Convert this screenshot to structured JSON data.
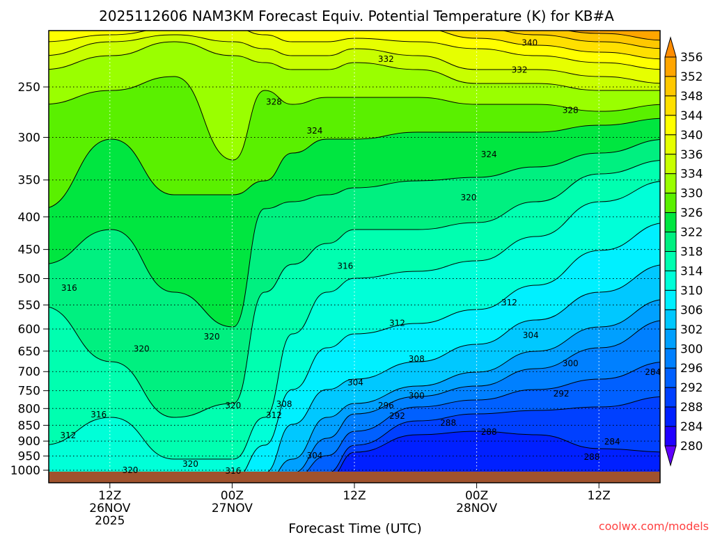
{
  "chart_data": {
    "type": "contour",
    "title": "2025112606 NAM3KM Forecast Equiv. Potential Temperature (K) for KB#A",
    "xlabel": "Forecast Time (UTC)",
    "ylabel": "",
    "x_unit": "forecast hours from 06Z 26NOV2025",
    "xlim": [
      0,
      60
    ],
    "ylim_hPa": [
      1045,
      205
    ],
    "y_scale": "log",
    "y_ticks": [
      250,
      300,
      350,
      400,
      450,
      500,
      550,
      600,
      650,
      700,
      750,
      800,
      850,
      900,
      950,
      1000
    ],
    "x_ticks": [
      {
        "hour": 6,
        "lines": [
          "12Z",
          "26NOV",
          "2025"
        ]
      },
      {
        "hour": 18,
        "lines": [
          "00Z",
          "27NOV"
        ]
      },
      {
        "hour": 30,
        "lines": [
          "12Z"
        ]
      },
      {
        "hour": 42,
        "lines": [
          "00Z",
          "28NOV"
        ]
      },
      {
        "hour": 54,
        "lines": [
          "12Z"
        ]
      }
    ],
    "grid": true,
    "colorbar": {
      "labels": [
        "356",
        "352",
        "348",
        "344",
        "340",
        "336",
        "334",
        "330",
        "326",
        "322",
        "318",
        "314",
        "310",
        "306",
        "302",
        "300",
        "296",
        "292",
        "288",
        "284",
        "280"
      ],
      "colors": [
        "#ffa500",
        "#ffc800",
        "#ffe000",
        "#ffff00",
        "#e6ff00",
        "#c8ff00",
        "#9aff00",
        "#5af000",
        "#00e640",
        "#00f080",
        "#00ffb0",
        "#00ffd8",
        "#00f0ff",
        "#00c8ff",
        "#00a0ff",
        "#0080ff",
        "#0060ff",
        "#0040ff",
        "#0020ff",
        "#2000ff"
      ],
      "over_color": "#ff8c00",
      "under_color": "#6000ff"
    },
    "ground_color": "#a0522d",
    "contour_labels": [
      {
        "value": "340",
        "hour": 47.2,
        "p": 213
      },
      {
        "value": "332",
        "hour": 33.1,
        "p": 226
      },
      {
        "value": "332",
        "hour": 46.2,
        "p": 235
      },
      {
        "value": "328",
        "hour": 22.1,
        "p": 264
      },
      {
        "value": "328",
        "hour": 51.2,
        "p": 272
      },
      {
        "value": "324",
        "hour": 26.1,
        "p": 293
      },
      {
        "value": "324",
        "hour": 43.2,
        "p": 319
      },
      {
        "value": "320",
        "hour": 41.2,
        "p": 373
      },
      {
        "value": "316",
        "hour": 29.1,
        "p": 478
      },
      {
        "value": "316",
        "hour": 2.0,
        "p": 517
      },
      {
        "value": "312",
        "hour": 45.2,
        "p": 545
      },
      {
        "value": "312",
        "hour": 34.2,
        "p": 587
      },
      {
        "value": "304",
        "hour": 47.3,
        "p": 614
      },
      {
        "value": "320",
        "hour": 16.0,
        "p": 617
      },
      {
        "value": "320",
        "hour": 9.1,
        "p": 645
      },
      {
        "value": "308",
        "hour": 36.1,
        "p": 669
      },
      {
        "value": "300",
        "hour": 51.2,
        "p": 680
      },
      {
        "value": "284",
        "hour": 59.3,
        "p": 701
      },
      {
        "value": "304",
        "hour": 30.1,
        "p": 728
      },
      {
        "value": "292",
        "hour": 50.3,
        "p": 758
      },
      {
        "value": "300",
        "hour": 36.1,
        "p": 764
      },
      {
        "value": "296",
        "hour": 33.1,
        "p": 791
      },
      {
        "value": "320",
        "hour": 18.1,
        "p": 791
      },
      {
        "value": "308",
        "hour": 23.1,
        "p": 787
      },
      {
        "value": "292",
        "hour": 34.2,
        "p": 822
      },
      {
        "value": "316",
        "hour": 4.9,
        "p": 818
      },
      {
        "value": "312",
        "hour": 22.1,
        "p": 820
      },
      {
        "value": "288",
        "hour": 39.2,
        "p": 843
      },
      {
        "value": "288",
        "hour": 43.2,
        "p": 871
      },
      {
        "value": "312",
        "hour": 1.9,
        "p": 882
      },
      {
        "value": "284",
        "hour": 55.3,
        "p": 902
      },
      {
        "value": "304",
        "hour": 26.1,
        "p": 948
      },
      {
        "value": "288",
        "hour": 53.3,
        "p": 953
      },
      {
        "value": "320",
        "hour": 13.9,
        "p": 978
      },
      {
        "value": "320",
        "hour": 8.0,
        "p": 1000
      },
      {
        "value": "316",
        "hour": 18.1,
        "p": 1002
      }
    ]
  },
  "credit": "coolwx.com/models"
}
